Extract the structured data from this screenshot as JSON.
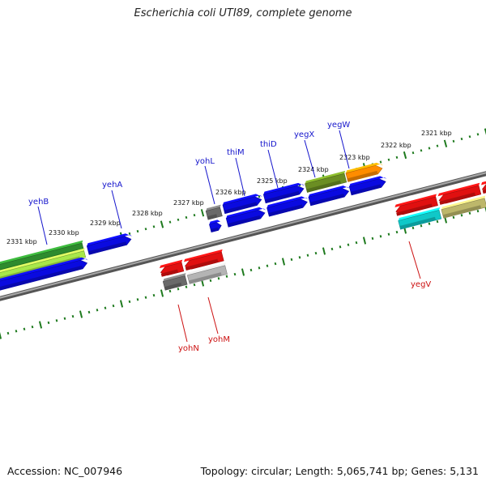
{
  "title": "Escherichia coli UTI89, complete genome",
  "footer": {
    "accession": "Accession: NC_007946",
    "topology": "Topology: circular; Length: 5,065,741 bp; Genes: 5,131"
  },
  "colors": {
    "backbone": "#7a7a7a",
    "ticks": "#1e7a1e",
    "top_gene_label": "#1515cc",
    "bottom_gene_label": "#cc1111",
    "feature_blue": "#0a0ae0",
    "feature_green": "#2e8b2e",
    "feature_lime": "#a8e84a",
    "feature_olive": "#6b8e23",
    "feature_orange": "#ff8c00",
    "feature_red": "#e01010",
    "feature_gray": "#6a6a6a",
    "feature_lightgray": "#b4b4b4",
    "feature_cyan": "#10c8c8",
    "feature_khaki": "#bdb76b"
  },
  "scale_labels": [
    "2321 kbp",
    "2322 kbp",
    "2323 kbp",
    "2324 kbp",
    "2325 kbp",
    "2326 kbp",
    "2327 kbp",
    "2328 kbp",
    "2329 kbp",
    "2330 kbp",
    "2331 kbp"
  ],
  "top_genes": [
    "yegW",
    "yegX",
    "thiD",
    "thiM",
    "yohL",
    "yehA",
    "yehB"
  ],
  "bottom_genes": [
    "yegV",
    "yohM",
    "yohN"
  ]
}
